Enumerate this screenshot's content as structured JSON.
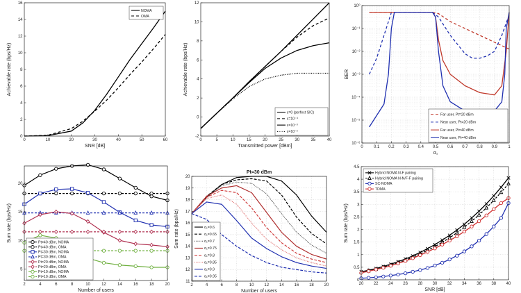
{
  "chart_data": [
    {
      "id": "p1",
      "type": "line",
      "xlabel": "SNR [dB]",
      "ylabel": "Achievable rate (bps/Hz)",
      "title": "",
      "xlim": [
        0,
        60
      ],
      "ylim": [
        0,
        16
      ],
      "xticks": [
        0,
        10,
        20,
        30,
        40,
        50,
        60
      ],
      "yticks": [
        0,
        2,
        4,
        6,
        8,
        10,
        12,
        14,
        16
      ],
      "grid": false,
      "legend_position": "top-right",
      "series": [
        {
          "name": "NOMA",
          "color": "#000000",
          "dash": "",
          "x": [
            0,
            10,
            20,
            25,
            30,
            35,
            40,
            45,
            50,
            55,
            60
          ],
          "y": [
            0.0,
            0.05,
            0.6,
            1.6,
            3.1,
            5.0,
            7.1,
            9.2,
            11.1,
            13.0,
            15.0
          ]
        },
        {
          "name": "OMA",
          "color": "#000000",
          "dash": "4,3",
          "x": [
            0,
            10,
            20,
            25,
            30,
            35,
            40,
            45,
            50,
            55,
            60
          ],
          "y": [
            0.0,
            0.1,
            0.9,
            1.8,
            3.0,
            4.3,
            5.8,
            7.4,
            8.9,
            10.5,
            12.2
          ]
        }
      ]
    },
    {
      "id": "p2",
      "type": "line",
      "xlabel": "Transmitted power [dBm]",
      "ylabel": "Achievable rate (bps/Hz)",
      "title": "",
      "xlim": [
        0,
        40
      ],
      "ylim": [
        -2,
        12
      ],
      "xticks": [
        0,
        5,
        10,
        15,
        20,
        25,
        30,
        35,
        40
      ],
      "yticks": [
        -2,
        0,
        2,
        4,
        6,
        8,
        10,
        12
      ],
      "grid": false,
      "legend_position": "bottom-right",
      "series": [
        {
          "name": "ε=0 (perfect SIC)",
          "color": "#000000",
          "dash": "",
          "x": [
            0,
            5,
            10,
            15,
            20,
            25,
            30,
            35,
            40
          ],
          "y": [
            -1.2,
            0.4,
            2.0,
            3.7,
            5.3,
            6.9,
            8.6,
            10.3,
            12.0
          ]
        },
        {
          "name": "ε=10⁻⁴",
          "color": "#000000",
          "dash": "4,3",
          "x": [
            0,
            5,
            10,
            15,
            20,
            25,
            30,
            35,
            40
          ],
          "y": [
            -1.2,
            0.4,
            2.0,
            3.7,
            5.3,
            6.9,
            8.4,
            9.6,
            10.4
          ]
        },
        {
          "name": "ε=10⁻³",
          "color": "#000000",
          "dash": "",
          "x": [
            0,
            5,
            10,
            15,
            20,
            25,
            30,
            35,
            40
          ],
          "y": [
            -1.2,
            0.4,
            2.0,
            3.6,
            5.1,
            6.2,
            7.0,
            7.5,
            7.8
          ]
        },
        {
          "name": "ε=10⁻²",
          "color": "#000000",
          "dash": "1,1.5",
          "x": [
            0,
            5,
            10,
            15,
            20,
            25,
            30,
            35,
            40
          ],
          "y": [
            -1.2,
            0.4,
            1.9,
            3.2,
            4.0,
            4.4,
            4.6,
            4.6,
            4.6
          ]
        }
      ]
    },
    {
      "id": "p3",
      "type": "line",
      "xlabel": "α₁",
      "ylabel": "BER",
      "title": "",
      "xlim": [
        0,
        1
      ],
      "ylim_log10": [
        -6,
        0
      ],
      "yscale": "log",
      "xticks": [
        0,
        0.1,
        0.2,
        0.3,
        0.4,
        0.5,
        0.6,
        0.7,
        0.8,
        0.9,
        1
      ],
      "yticks_log10": [
        -6,
        -5,
        -4,
        -3,
        -2,
        -1,
        0
      ],
      "yticklabels": [
        "10⁻⁶",
        "10⁻⁵",
        "10⁻⁴",
        "10⁻³",
        "10⁻²",
        "10⁻¹",
        "10⁰"
      ],
      "grid": true,
      "legend_position": "bottom-right",
      "series": [
        {
          "name": "Far user, Pt=20 dBm",
          "color": "#c0392b",
          "dash": "4,3",
          "x": [
            0.05,
            0.1,
            0.2,
            0.3,
            0.4,
            0.48,
            0.52,
            0.6,
            0.7,
            0.8,
            0.9,
            0.95,
            1.0
          ],
          "log10y": [
            -0.3,
            -0.3,
            -0.3,
            -0.3,
            -0.3,
            -0.3,
            -0.35,
            -0.7,
            -1.0,
            -1.3,
            -1.6,
            -1.75,
            -1.9
          ]
        },
        {
          "name": "Near user, Pt=20 dBm",
          "color": "#2030b0",
          "dash": "4,3",
          "x": [
            0.05,
            0.1,
            0.15,
            0.2,
            0.3,
            0.4,
            0.48,
            0.52,
            0.6,
            0.7,
            0.75,
            0.8,
            0.85,
            0.9,
            0.95,
            1.0
          ],
          "log10y": [
            -3.0,
            -2.3,
            -1.3,
            -0.3,
            -0.3,
            -0.3,
            -0.3,
            -0.5,
            -1.3,
            -2.1,
            -2.3,
            -2.3,
            -2.2,
            -2.0,
            -1.3,
            -0.4
          ]
        },
        {
          "name": "Far user, Pt=40 dBm",
          "color": "#c0392b",
          "dash": "",
          "x": [
            0.05,
            0.2,
            0.3,
            0.4,
            0.48,
            0.5,
            0.52,
            0.55,
            0.6,
            0.7,
            0.8,
            0.9,
            0.95,
            0.98,
            1.0
          ],
          "log10y": [
            -0.3,
            -0.3,
            -0.3,
            -0.3,
            -0.3,
            -0.5,
            -1.5,
            -2.4,
            -3.0,
            -3.5,
            -3.8,
            -3.9,
            -3.5,
            -2.0,
            -0.3
          ]
        },
        {
          "name": "Near user, Pt=40 dBm",
          "color": "#2030b0",
          "dash": "",
          "x": [
            0.05,
            0.1,
            0.15,
            0.18,
            0.2,
            0.22,
            0.3,
            0.48,
            0.5,
            0.52,
            0.55,
            0.6,
            0.7,
            0.8,
            0.9,
            0.95,
            0.97,
            0.98,
            1.0
          ],
          "log10y": [
            -5.3,
            -4.8,
            -4.3,
            -3.0,
            -1.0,
            -0.3,
            -0.3,
            -0.3,
            -0.5,
            -2.0,
            -3.5,
            -4.2,
            -4.6,
            -4.7,
            -4.6,
            -4.2,
            -3.0,
            -1.0,
            -0.3
          ]
        }
      ]
    },
    {
      "id": "p4",
      "type": "line",
      "xlabel": "Number of users",
      "ylabel": "Sum rate (bps/Hz)",
      "title": "",
      "xlim": [
        2,
        20
      ],
      "ylim": [
        3,
        23
      ],
      "xticks": [
        2,
        4,
        6,
        8,
        10,
        12,
        14,
        16,
        18,
        20
      ],
      "yticks": [
        5,
        10,
        15,
        20
      ],
      "grid": false,
      "legend_position": "bottom-left",
      "x": [
        2,
        4,
        6,
        8,
        10,
        12,
        14,
        16,
        18,
        20
      ],
      "series": [
        {
          "name": "Pt=40 dBm, NOMA",
          "color": "#000000",
          "dash": "",
          "marker": "circle",
          "values": [
            19.6,
            21.4,
            22.5,
            23.0,
            23.2,
            22.4,
            20.8,
            19.2,
            17.7,
            17.0
          ]
        },
        {
          "name": "Pt=40 dBm, OMA",
          "color": "#000000",
          "dash": "3,2",
          "marker": "circle",
          "values": [
            18.2,
            18.2,
            18.2,
            18.2,
            18.2,
            18.2,
            18.2,
            18.2,
            18.2,
            18.2
          ]
        },
        {
          "name": "Pt=30 dBm, NOMA",
          "color": "#2030b0",
          "dash": "",
          "marker": "square",
          "values": [
            16.3,
            18.2,
            18.9,
            19.0,
            18.3,
            16.7,
            14.9,
            13.5,
            12.7,
            12.4
          ]
        },
        {
          "name": "Pt=30 dBm, OMA",
          "color": "#2030b0",
          "dash": "3,2",
          "marker": "triangle",
          "values": [
            14.8,
            14.8,
            14.8,
            14.8,
            14.8,
            14.8,
            14.8,
            14.8,
            14.8,
            14.8
          ]
        },
        {
          "name": "Pt=20 dBm, NOMA",
          "color": "#b03050",
          "dash": "",
          "marker": "diamond",
          "values": [
            13.0,
            14.5,
            15.0,
            14.7,
            13.3,
            11.4,
            10.0,
            9.4,
            9.2,
            8.9
          ]
        },
        {
          "name": "Pt=20 dBm, OMA",
          "color": "#b03050",
          "dash": "3,2",
          "marker": "diamond",
          "values": [
            11.5,
            11.5,
            11.5,
            11.5,
            11.5,
            11.5,
            11.5,
            11.5,
            11.5,
            11.5
          ]
        },
        {
          "name": "Pt=10 dBm, NOMA",
          "color": "#70b040",
          "dash": "",
          "marker": "circle",
          "values": [
            9.6,
            10.9,
            10.4,
            8.6,
            6.9,
            6.1,
            5.7,
            5.5,
            5.3,
            5.3
          ]
        },
        {
          "name": "Pt=10 dBm, OMA",
          "color": "#70b040",
          "dash": "3,2",
          "marker": "circle",
          "values": [
            8.2,
            8.2,
            8.2,
            8.2,
            8.2,
            8.2,
            8.2,
            8.2,
            8.2,
            8.2
          ]
        }
      ]
    },
    {
      "id": "p5",
      "type": "line",
      "title": "Pt=30 dBm",
      "xlabel": "Number of users",
      "ylabel": "Sum rate (bps/Hz)",
      "xlim": [
        2,
        20
      ],
      "ylim": [
        11,
        20
      ],
      "xticks": [
        2,
        4,
        6,
        8,
        10,
        12,
        14,
        16,
        18,
        20
      ],
      "yticks": [
        11,
        12,
        13,
        14,
        15,
        16,
        17,
        18,
        19,
        20
      ],
      "grid": true,
      "legend_position": "bottom-left",
      "x": [
        2,
        4,
        6,
        8,
        10,
        12,
        14,
        16,
        18,
        20
      ],
      "series": [
        {
          "name": "α₁=0.6",
          "color": "#000000",
          "dash": "",
          "values": [
            16.8,
            18.2,
            19.3,
            19.9,
            20.0,
            20.0,
            19.6,
            18.4,
            16.6,
            15.2
          ]
        },
        {
          "name": "α₁=0.65",
          "color": "#000000",
          "dash": "4,2",
          "values": [
            16.8,
            18.3,
            19.3,
            19.7,
            19.8,
            19.6,
            18.4,
            16.5,
            15.1,
            14.2
          ]
        },
        {
          "name": "α₁=0.7",
          "color": "#555555",
          "dash": "1,1.2",
          "values": [
            16.8,
            18.3,
            19.2,
            19.5,
            19.4,
            18.5,
            16.8,
            15.2,
            14.1,
            13.4
          ]
        },
        {
          "name": "α₁=0.75",
          "color": "#b03030",
          "dash": "",
          "values": [
            16.8,
            18.3,
            19.0,
            19.2,
            18.6,
            16.9,
            15.2,
            14.0,
            13.3,
            12.9
          ]
        },
        {
          "name": "α₁=0.8",
          "color": "#d04040",
          "dash": "4,2",
          "values": [
            16.8,
            18.2,
            18.8,
            18.6,
            17.3,
            15.6,
            14.3,
            13.4,
            12.9,
            12.6
          ]
        },
        {
          "name": "α₁=0.85",
          "color": "#e07070",
          "dash": "1,1.2",
          "values": [
            16.8,
            18.1,
            18.4,
            17.6,
            16.0,
            14.6,
            13.7,
            13.0,
            12.6,
            12.3
          ]
        },
        {
          "name": "α₁=0.9",
          "color": "#2030b0",
          "dash": "",
          "values": [
            16.8,
            17.8,
            17.6,
            16.2,
            14.7,
            13.8,
            13.1,
            12.6,
            12.3,
            12.1
          ]
        },
        {
          "name": "α₁=0.95",
          "color": "#2030b0",
          "dash": "4,2",
          "values": [
            16.8,
            16.3,
            15.0,
            14.0,
            13.2,
            12.6,
            12.2,
            12.0,
            11.8,
            11.7
          ]
        }
      ]
    },
    {
      "id": "p6",
      "type": "line",
      "xlabel": "SNR [dB]",
      "ylabel": "Sum rate (bps/Hz)",
      "title": "",
      "xlim": [
        20,
        40
      ],
      "ylim": [
        0,
        4.5
      ],
      "xticks": [
        20,
        22,
        24,
        26,
        28,
        30,
        32,
        34,
        36,
        38,
        40
      ],
      "yticks": [
        0,
        0.5,
        1,
        1.5,
        2,
        2.5,
        3,
        3.5,
        4,
        4.5
      ],
      "grid": true,
      "legend_position": "top-left",
      "x": [
        20,
        21,
        22,
        23,
        24,
        25,
        26,
        27,
        28,
        29,
        30,
        31,
        32,
        33,
        34,
        35,
        36,
        37,
        38,
        39,
        40
      ],
      "series": [
        {
          "name": "Hybrid NOMA N-F pairing",
          "color": "#000000",
          "dash": "",
          "marker": "x",
          "values": [
            0.32,
            0.38,
            0.45,
            0.53,
            0.62,
            0.72,
            0.83,
            0.95,
            1.09,
            1.24,
            1.4,
            1.58,
            1.77,
            1.98,
            2.21,
            2.46,
            2.73,
            3.02,
            3.34,
            3.68,
            4.05
          ]
        },
        {
          "name": "Hybrid NOMA N-N/F-F pairing",
          "color": "#000000",
          "dash": "3,2",
          "marker": "triangle",
          "values": [
            0.3,
            0.36,
            0.42,
            0.5,
            0.58,
            0.68,
            0.78,
            0.9,
            1.03,
            1.17,
            1.32,
            1.49,
            1.67,
            1.87,
            2.09,
            2.33,
            2.58,
            2.86,
            3.16,
            3.48,
            3.82
          ]
        },
        {
          "name": "SC-NOMA",
          "color": "#2030b0",
          "dash": "",
          "marker": "circle",
          "values": [
            0.06,
            0.08,
            0.1,
            0.13,
            0.17,
            0.21,
            0.26,
            0.32,
            0.39,
            0.47,
            0.57,
            0.68,
            0.81,
            0.96,
            1.13,
            1.33,
            1.56,
            1.82,
            2.12,
            2.46,
            3.05
          ]
        },
        {
          "name": "TDMA",
          "color": "#d03030",
          "dash": "",
          "marker": "circle",
          "values": [
            0.28,
            0.34,
            0.41,
            0.48,
            0.56,
            0.65,
            0.75,
            0.86,
            0.98,
            1.11,
            1.25,
            1.4,
            1.56,
            1.73,
            1.92,
            2.12,
            2.33,
            2.56,
            2.81,
            3.05,
            3.25
          ]
        }
      ]
    }
  ]
}
